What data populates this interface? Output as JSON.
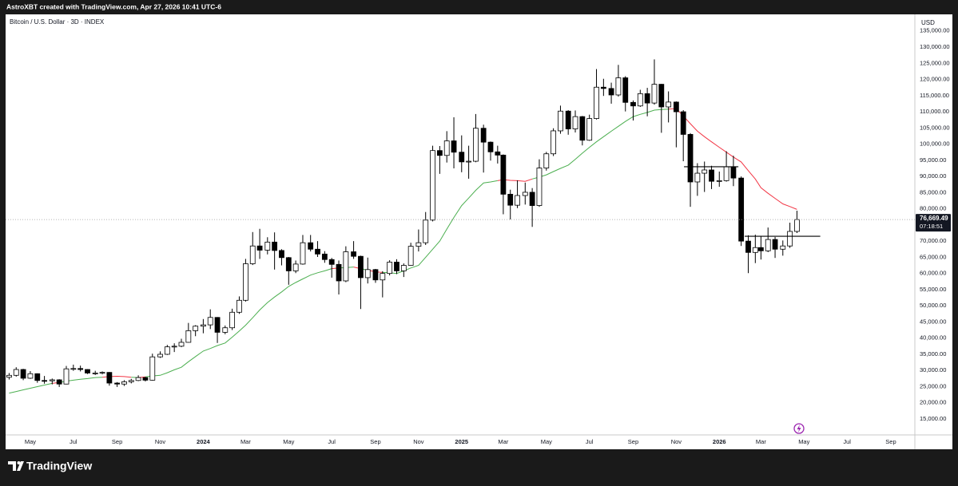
{
  "chart_data": {
    "type": "candlestick",
    "attribution": "AstroXBT created with TradingView.com, Apr 27, 2026 10:41 UTC-6",
    "title": "Bitcoin / U.S. Dollar · 3D · INDEX",
    "currency": "USD",
    "brand": "TradingView",
    "last_price_label": "76,669.49",
    "countdown": "07:18:51",
    "up_color": "#ffffff",
    "down_color": "#000000",
    "wick_color": "#000000",
    "grid": false,
    "xlim": [
      "2023-03-27",
      "2026-10-05"
    ],
    "ylim": [
      10065,
      140120
    ],
    "xticks": [
      {
        "value": "2023-05-01",
        "label": "May"
      },
      {
        "value": "2023-07-01",
        "label": "Jul"
      },
      {
        "value": "2023-09-01",
        "label": "Sep"
      },
      {
        "value": "2023-11-01",
        "label": "Nov"
      },
      {
        "value": "2024-01-01",
        "label": "2024"
      },
      {
        "value": "2024-03-01",
        "label": "Mar"
      },
      {
        "value": "2024-05-01",
        "label": "May"
      },
      {
        "value": "2024-07-01",
        "label": "Jul"
      },
      {
        "value": "2024-09-01",
        "label": "Sep"
      },
      {
        "value": "2024-11-01",
        "label": "Nov"
      },
      {
        "value": "2025-01-01",
        "label": "2025"
      },
      {
        "value": "2025-03-01",
        "label": "Mar"
      },
      {
        "value": "2025-05-01",
        "label": "May"
      },
      {
        "value": "2025-07-01",
        "label": "Jul"
      },
      {
        "value": "2025-09-01",
        "label": "Sep"
      },
      {
        "value": "2025-11-01",
        "label": "Nov"
      },
      {
        "value": "2026-01-01",
        "label": "2026"
      },
      {
        "value": "2026-03-01",
        "label": "Mar"
      },
      {
        "value": "2026-05-01",
        "label": "May"
      },
      {
        "value": "2026-07-01",
        "label": "Jul"
      },
      {
        "value": "2026-09-01",
        "label": "Sep"
      }
    ],
    "yticks": [
      {
        "value": 15000,
        "label": "15,000.00"
      },
      {
        "value": 20000,
        "label": "20,000.00"
      },
      {
        "value": 25000,
        "label": "25,000.00"
      },
      {
        "value": 30000,
        "label": "30,000.00"
      },
      {
        "value": 35000,
        "label": "35,000.00"
      },
      {
        "value": 40000,
        "label": "40,000.00"
      },
      {
        "value": 45000,
        "label": "45,000.00"
      },
      {
        "value": 50000,
        "label": "50,000.00"
      },
      {
        "value": 55000,
        "label": "55,000.00"
      },
      {
        "value": 60000,
        "label": "60,000.00"
      },
      {
        "value": 65000,
        "label": "65,000.00"
      },
      {
        "value": 70000,
        "label": "70,000.00"
      },
      {
        "value": 75000,
        "label": "75,000.00"
      },
      {
        "value": 80000,
        "label": "80,000.00"
      },
      {
        "value": 85000,
        "label": "85,000.00"
      },
      {
        "value": 90000,
        "label": "90,000.00"
      },
      {
        "value": 95000,
        "label": "95,000.00"
      },
      {
        "value": 100000,
        "label": "100,000.00"
      },
      {
        "value": 105000,
        "label": "105,000.00"
      },
      {
        "value": 110000,
        "label": "110,000.00"
      },
      {
        "value": 115000,
        "label": "115,000.00"
      },
      {
        "value": 120000,
        "label": "120,000.00"
      },
      {
        "value": 125000,
        "label": "125,000.00"
      },
      {
        "value": 130000,
        "label": "130,000.00"
      },
      {
        "value": 135000,
        "label": "135,000.00"
      }
    ],
    "x": [
      "2023-04-01",
      "2023-04-11",
      "2023-04-21",
      "2023-05-01",
      "2023-05-11",
      "2023-05-21",
      "2023-06-01",
      "2023-06-11",
      "2023-06-21",
      "2023-07-01",
      "2023-07-11",
      "2023-07-21",
      "2023-08-01",
      "2023-08-11",
      "2023-08-21",
      "2023-09-01",
      "2023-09-11",
      "2023-09-21",
      "2023-10-01",
      "2023-10-11",
      "2023-10-21",
      "2023-11-01",
      "2023-11-11",
      "2023-11-21",
      "2023-12-01",
      "2023-12-11",
      "2023-12-21",
      "2024-01-01",
      "2024-01-11",
      "2024-01-21",
      "2024-02-01",
      "2024-02-11",
      "2024-02-21",
      "2024-03-01",
      "2024-03-11",
      "2024-03-21",
      "2024-04-01",
      "2024-04-11",
      "2024-04-21",
      "2024-05-01",
      "2024-05-11",
      "2024-05-21",
      "2024-06-01",
      "2024-06-11",
      "2024-06-21",
      "2024-07-01",
      "2024-07-11",
      "2024-07-21",
      "2024-08-01",
      "2024-08-11",
      "2024-08-21",
      "2024-09-01",
      "2024-09-11",
      "2024-09-21",
      "2024-10-01",
      "2024-10-11",
      "2024-10-21",
      "2024-11-01",
      "2024-11-11",
      "2024-11-21",
      "2024-12-01",
      "2024-12-11",
      "2024-12-21",
      "2025-01-01",
      "2025-01-11",
      "2025-01-21",
      "2025-02-01",
      "2025-02-11",
      "2025-02-21",
      "2025-03-01",
      "2025-03-11",
      "2025-03-21",
      "2025-04-01",
      "2025-04-11",
      "2025-04-21",
      "2025-05-01",
      "2025-05-11",
      "2025-05-21",
      "2025-06-01",
      "2025-06-11",
      "2025-06-21",
      "2025-07-01",
      "2025-07-11",
      "2025-07-21",
      "2025-08-01",
      "2025-08-11",
      "2025-08-21",
      "2025-09-01",
      "2025-09-11",
      "2025-09-21",
      "2025-10-01",
      "2025-10-11",
      "2025-10-21",
      "2025-11-01",
      "2025-11-11",
      "2025-11-21",
      "2025-12-01",
      "2025-12-11",
      "2025-12-21",
      "2026-01-01",
      "2026-01-11",
      "2026-01-21",
      "2026-02-01",
      "2026-02-11",
      "2026-02-21",
      "2026-03-01",
      "2026-03-11",
      "2026-03-21",
      "2026-04-01",
      "2026-04-11",
      "2026-04-21"
    ],
    "open": [
      27900,
      28500,
      30300,
      27600,
      29000,
      26900,
      26800,
      27100,
      25800,
      30500,
      30600,
      30300,
      29200,
      29200,
      29400,
      26100,
      25800,
      26500,
      26900,
      27800,
      27000,
      34200,
      35000,
      37300,
      37500,
      38700,
      42300,
      43700,
      44100,
      46400,
      41800,
      43200,
      48000,
      51700,
      63000,
      68500,
      67200,
      69700,
      67100,
      64900,
      60800,
      62900,
      69500,
      67500,
      66000,
      64300,
      62800,
      57700,
      66700,
      65300,
      58700,
      61200,
      58000,
      60000,
      63500,
      60800,
      62500,
      68400,
      69500,
      76500,
      98000,
      96500,
      101000,
      97500,
      94500,
      94700,
      104900,
      100600,
      97600,
      96600,
      84500,
      81100,
      84100,
      85100,
      81000,
      92600,
      97000,
      104100,
      110200,
      104700,
      108500,
      101200,
      107900,
      117600,
      117200,
      115200,
      120500,
      112900,
      111800,
      115600,
      112700,
      118500,
      111500,
      113000,
      110000,
      103000,
      88300,
      91000,
      92000,
      88500,
      88700,
      93000,
      89500,
      70000,
      66500,
      68000,
      67000,
      70500,
      67500,
      68500,
      73000
    ],
    "high": [
      29200,
      31000,
      30500,
      29800,
      29100,
      28300,
      27500,
      27300,
      31400,
      31800,
      31500,
      30400,
      29900,
      29700,
      29500,
      26400,
      27000,
      27400,
      28500,
      28000,
      35200,
      35900,
      37900,
      38400,
      39800,
      44700,
      44000,
      45900,
      48900,
      46500,
      43900,
      49100,
      52900,
      64500,
      72800,
      73800,
      71200,
      72700,
      67500,
      65100,
      64000,
      71900,
      71900,
      70000,
      66900,
      64800,
      64000,
      68400,
      70000,
      65500,
      64900,
      61400,
      60700,
      64100,
      64400,
      63100,
      69500,
      73600,
      79000,
      99500,
      99400,
      104000,
      108300,
      102700,
      99500,
      109300,
      106000,
      100800,
      99500,
      96800,
      85900,
      88800,
      88100,
      86400,
      95300,
      97600,
      104900,
      111900,
      110500,
      110400,
      108700,
      109100,
      123200,
      120200,
      119000,
      124500,
      121000,
      113500,
      116800,
      117400,
      126200,
      118600,
      116300,
      113200,
      110500,
      103400,
      94100,
      94600,
      93300,
      91500,
      97800,
      96400,
      90000,
      71800,
      72000,
      71500,
      74200,
      71300,
      70200,
      75700,
      79400
    ],
    "low": [
      27200,
      28100,
      27000,
      27400,
      26200,
      25900,
      25700,
      24900,
      25700,
      29900,
      29700,
      28900,
      28600,
      28800,
      25300,
      24900,
      25200,
      26000,
      26700,
      26600,
      26900,
      33900,
      34800,
      35700,
      37200,
      38600,
      40600,
      41500,
      42800,
      38500,
      41200,
      42500,
      47500,
      51300,
      62600,
      64500,
      65900,
      61200,
      62500,
      56500,
      60100,
      62700,
      66800,
      65100,
      63300,
      58700,
      53500,
      57300,
      64500,
      49000,
      56900,
      57100,
      52600,
      59400,
      59800,
      58900,
      62400,
      66800,
      68800,
      76100,
      90800,
      94300,
      92500,
      91300,
      89300,
      94400,
      91200,
      94900,
      94000,
      78300,
      76700,
      80200,
      81300,
      74400,
      80600,
      91800,
      96300,
      103200,
      102900,
      103600,
      99600,
      101000,
      107600,
      114900,
      112500,
      114700,
      110100,
      107300,
      111500,
      108600,
      112200,
      103500,
      106700,
      99000,
      94700,
      80600,
      84000,
      85200,
      86100,
      86800,
      88400,
      87000,
      68500,
      60100,
      63200,
      64300,
      66600,
      64800,
      65500,
      67900,
      72500
    ],
    "close": [
      28500,
      30300,
      27600,
      29000,
      26900,
      26800,
      27100,
      25800,
      30500,
      30600,
      30300,
      29200,
      29200,
      29400,
      26100,
      25800,
      26500,
      26900,
      27800,
      27000,
      34200,
      35000,
      37300,
      37500,
      38700,
      42300,
      43700,
      44100,
      46400,
      41800,
      43200,
      48000,
      51700,
      63000,
      68500,
      67200,
      69700,
      67100,
      64900,
      60800,
      62900,
      69500,
      67500,
      66000,
      64300,
      62800,
      57700,
      66700,
      65300,
      58700,
      61200,
      58000,
      60000,
      63500,
      60800,
      62500,
      68400,
      69500,
      76500,
      98000,
      96500,
      101000,
      97500,
      94500,
      94700,
      104900,
      100600,
      97600,
      96600,
      84500,
      81100,
      84100,
      85100,
      81000,
      92600,
      97000,
      104100,
      110200,
      104700,
      108500,
      101200,
      107900,
      117600,
      117200,
      115200,
      120500,
      112900,
      111800,
      115600,
      112700,
      118500,
      111500,
      113000,
      110000,
      103000,
      88300,
      91000,
      92000,
      88500,
      88700,
      93000,
      89500,
      70000,
      66500,
      68000,
      67000,
      70500,
      67500,
      68500,
      73000,
      76669.49
    ],
    "ma": {
      "up_color": "#4caf50",
      "down_color": "#f23645",
      "values": [
        23000,
        23500,
        24000,
        24500,
        25000,
        25500,
        26000,
        26300,
        26700,
        27000,
        27300,
        27500,
        27800,
        27900,
        28100,
        28200,
        28100,
        27900,
        27800,
        28000,
        28300,
        28500,
        29300,
        30200,
        31000,
        32700,
        34300,
        36000,
        36800,
        37700,
        38500,
        40300,
        42200,
        44000,
        46300,
        48700,
        51000,
        52700,
        54300,
        56000,
        57200,
        58300,
        59500,
        60200,
        60800,
        61500,
        61700,
        61800,
        62000,
        61500,
        61000,
        60500,
        60300,
        60200,
        60000,
        60800,
        61700,
        62500,
        65000,
        67500,
        70000,
        73700,
        77300,
        81000,
        83300,
        85700,
        88000,
        88300,
        88700,
        89000,
        88800,
        88700,
        88500,
        89200,
        89800,
        90500,
        91500,
        92500,
        93500,
        95300,
        97200,
        99000,
        100700,
        102300,
        104000,
        105500,
        107000,
        108500,
        109200,
        109800,
        110500,
        110700,
        110800,
        111000,
        108700,
        106300,
        104000,
        102300,
        100700,
        99000,
        97500,
        96000,
        94500,
        91800,
        89200,
        86500,
        84800,
        83200,
        81500,
        80700,
        79800
      ]
    },
    "hlines": [
      {
        "value": 93000,
        "from": "2025-11-12",
        "to": "2026-01-28"
      },
      {
        "value": 71500,
        "from": "2026-02-06",
        "to": "2026-05-24"
      }
    ]
  }
}
